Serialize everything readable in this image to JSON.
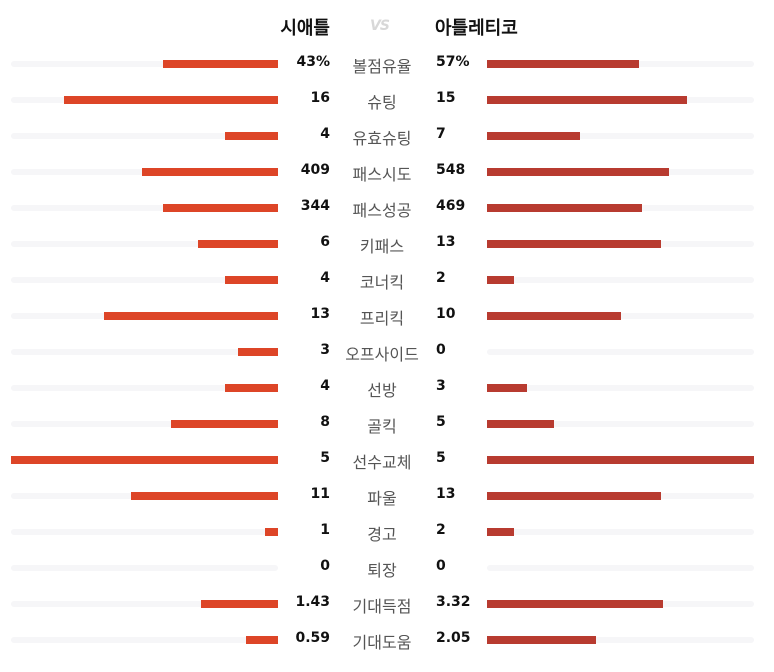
{
  "teams": {
    "home": "시애틀",
    "away": "아틀레티코",
    "vs": "VS"
  },
  "colors": {
    "home_bar": "#dd4527",
    "away_bar": "#b83b30",
    "track": "#f6f6f8"
  },
  "stats": [
    {
      "label": "볼점유율",
      "home": "43%",
      "away": "57%",
      "home_frac": 0.43,
      "away_frac": 0.57
    },
    {
      "label": "슈팅",
      "home": "16",
      "away": "15",
      "home_frac": 0.8,
      "away_frac": 0.75
    },
    {
      "label": "유효슈팅",
      "home": "4",
      "away": "7",
      "home_frac": 0.2,
      "away_frac": 0.35
    },
    {
      "label": "패스시도",
      "home": "409",
      "away": "548",
      "home_frac": 0.51,
      "away_frac": 0.68
    },
    {
      "label": "패스성공",
      "home": "344",
      "away": "469",
      "home_frac": 0.43,
      "away_frac": 0.58
    },
    {
      "label": "키패스",
      "home": "6",
      "away": "13",
      "home_frac": 0.3,
      "away_frac": 0.65
    },
    {
      "label": "코너킥",
      "home": "4",
      "away": "2",
      "home_frac": 0.2,
      "away_frac": 0.1
    },
    {
      "label": "프리킥",
      "home": "13",
      "away": "10",
      "home_frac": 0.65,
      "away_frac": 0.5
    },
    {
      "label": "오프사이드",
      "home": "3",
      "away": "0",
      "home_frac": 0.15,
      "away_frac": 0.0
    },
    {
      "label": "선방",
      "home": "4",
      "away": "3",
      "home_frac": 0.2,
      "away_frac": 0.15
    },
    {
      "label": "골킥",
      "home": "8",
      "away": "5",
      "home_frac": 0.4,
      "away_frac": 0.25
    },
    {
      "label": "선수교체",
      "home": "5",
      "away": "5",
      "home_frac": 1.0,
      "away_frac": 1.0
    },
    {
      "label": "파울",
      "home": "11",
      "away": "13",
      "home_frac": 0.55,
      "away_frac": 0.65
    },
    {
      "label": "경고",
      "home": "1",
      "away": "2",
      "home_frac": 0.05,
      "away_frac": 0.1
    },
    {
      "label": "퇴장",
      "home": "0",
      "away": "0",
      "home_frac": 0.0,
      "away_frac": 0.0
    },
    {
      "label": "기대득점",
      "home": "1.43",
      "away": "3.32",
      "home_frac": 0.29,
      "away_frac": 0.66
    },
    {
      "label": "기대도움",
      "home": "0.59",
      "away": "2.05",
      "home_frac": 0.12,
      "away_frac": 0.41
    }
  ]
}
